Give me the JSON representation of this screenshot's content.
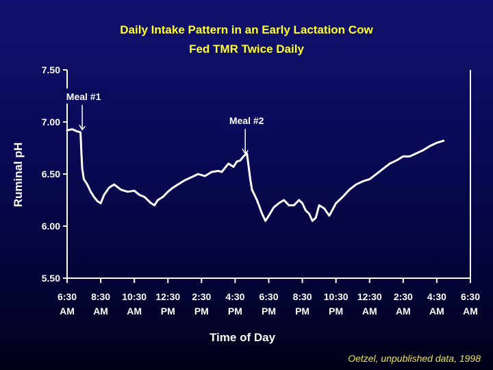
{
  "chart_data": {
    "type": "line",
    "title": "Daily Intake Pattern in an Early Lactation Cow",
    "subtitle": "Fed TMR Twice Daily",
    "xlabel": "Time of Day",
    "ylabel": "Ruminal pH",
    "ylim": [
      5.5,
      7.5
    ],
    "yticks": [
      "5.50",
      "6.00",
      "6.50",
      "7.00",
      "7.50"
    ],
    "xlim_hours": [
      0,
      24
    ],
    "xticks": [
      {
        "hour": 0,
        "time": "6:30",
        "ampm": "AM"
      },
      {
        "hour": 2,
        "time": "8:30",
        "ampm": "AM"
      },
      {
        "hour": 4,
        "time": "10:30",
        "ampm": "AM"
      },
      {
        "hour": 6,
        "time": "12:30",
        "ampm": "PM"
      },
      {
        "hour": 8,
        "time": "2:30",
        "ampm": "PM"
      },
      {
        "hour": 10,
        "time": "4:30",
        "ampm": "PM"
      },
      {
        "hour": 12,
        "time": "6:30",
        "ampm": "PM"
      },
      {
        "hour": 14,
        "time": "8:30",
        "ampm": "PM"
      },
      {
        "hour": 16,
        "time": "10:30",
        "ampm": "PM"
      },
      {
        "hour": 18,
        "time": "12:30",
        "ampm": "AM"
      },
      {
        "hour": 20,
        "time": "2:30",
        "ampm": "AM"
      },
      {
        "hour": 22,
        "time": "4:30",
        "ampm": "AM"
      },
      {
        "hour": 24,
        "time": "6:30",
        "ampm": "AM"
      }
    ],
    "grid": false,
    "series": [
      {
        "color": "#ffffff",
        "x": [
          0,
          0.3,
          0.6,
          0.8,
          0.85,
          0.9,
          1.0,
          1.2,
          1.4,
          1.6,
          1.8,
          2.0,
          2.2,
          2.5,
          2.8,
          3.2,
          3.6,
          4.0,
          4.3,
          4.6,
          4.8,
          5.0,
          5.2,
          5.4,
          5.7,
          6.0,
          6.3,
          6.6,
          7.0,
          7.4,
          7.8,
          8.2,
          8.6,
          9.0,
          9.2,
          9.6,
          9.9,
          10.1,
          10.3,
          10.5,
          10.7,
          10.9,
          11.0,
          11.3,
          11.6,
          11.8,
          12.0,
          12.3,
          12.6,
          12.9,
          13.2,
          13.5,
          13.8,
          14.0,
          14.2,
          14.4,
          14.6,
          14.8,
          15.0,
          15.3,
          15.6,
          16.0,
          16.4,
          16.8,
          17.2,
          17.6,
          18.0,
          18.4,
          18.8,
          19.2,
          19.6,
          20.0,
          20.4,
          20.8,
          21.2,
          21.6,
          22.0,
          22.4
        ],
        "y": [
          6.92,
          6.93,
          6.91,
          6.9,
          6.7,
          6.55,
          6.45,
          6.4,
          6.33,
          6.28,
          6.24,
          6.22,
          6.3,
          6.37,
          6.4,
          6.35,
          6.33,
          6.34,
          6.3,
          6.28,
          6.25,
          6.22,
          6.2,
          6.25,
          6.28,
          6.33,
          6.37,
          6.4,
          6.44,
          6.47,
          6.5,
          6.48,
          6.52,
          6.53,
          6.52,
          6.6,
          6.57,
          6.62,
          6.63,
          6.67,
          6.7,
          6.45,
          6.35,
          6.25,
          6.12,
          6.05,
          6.1,
          6.18,
          6.22,
          6.25,
          6.2,
          6.2,
          6.25,
          6.22,
          6.15,
          6.12,
          6.05,
          6.08,
          6.2,
          6.17,
          6.1,
          6.22,
          6.28,
          6.35,
          6.4,
          6.43,
          6.45,
          6.5,
          6.55,
          6.6,
          6.63,
          6.67,
          6.67,
          6.7,
          6.73,
          6.77,
          6.8,
          6.82
        ]
      }
    ],
    "annotations": [
      {
        "text": "Meal #1",
        "x": 0.9,
        "y": 6.9
      },
      {
        "text": "Meal #2",
        "x": 10.6,
        "y": 6.67
      }
    ]
  },
  "source_note": "Oetzel, unpublished data, 1998",
  "colors": {
    "title": "#ffff33",
    "axis": "#ffffff",
    "source": "#f2e63c"
  }
}
